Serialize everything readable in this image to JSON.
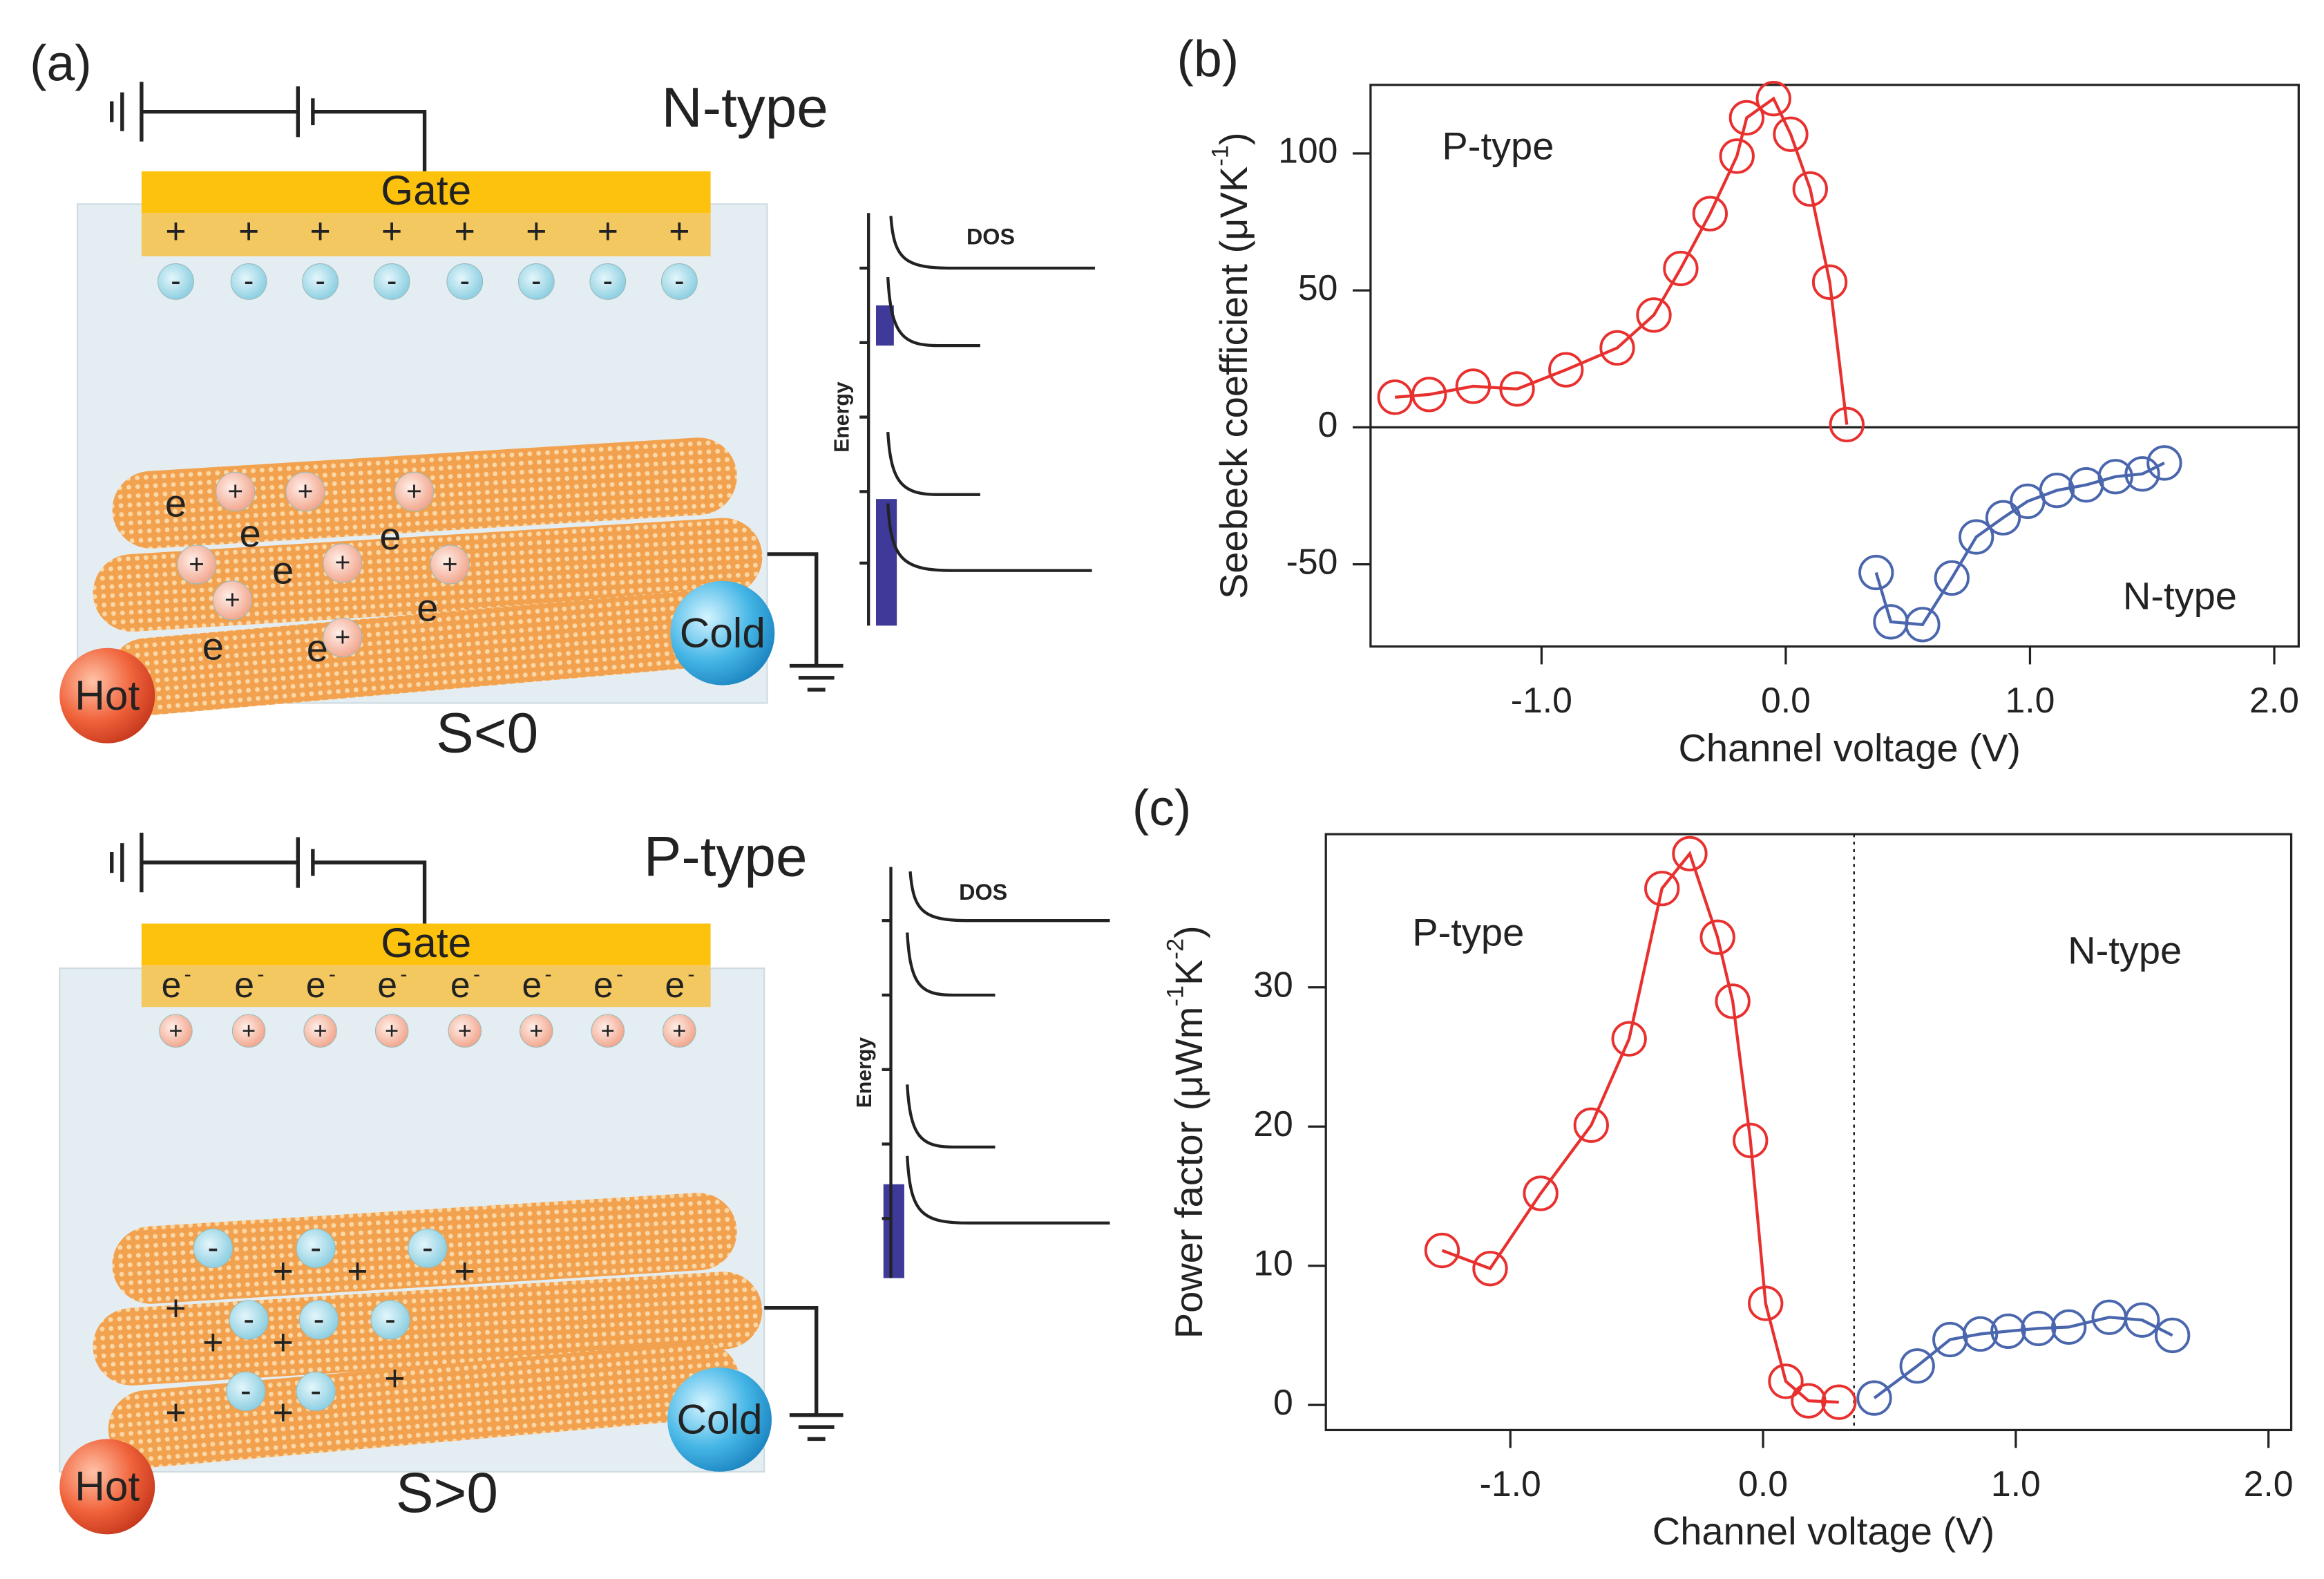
{
  "panel_a": {
    "label": "(a)",
    "top_type": "N-type",
    "bottom_type": "P-type",
    "gate": "Gate",
    "dos": "DOS",
    "energy": "Energy",
    "hot": "Hot",
    "cold": "Cold",
    "top_sign": "S<0",
    "bottom_sign": "S>0",
    "plus": "+",
    "minus": "-",
    "electron": "e"
  },
  "chart_data": [
    {
      "type": "line",
      "label": "(b)",
      "xlabel": "Channel voltage (V)",
      "ylabel": [
        "Seebeck coefficient (μVK",
        "-1",
        ")"
      ],
      "xlim": [
        -1.7,
        2.1
      ],
      "ylim": [
        -80,
        125
      ],
      "xticks": [
        {
          "value": -1,
          "label": "-1.0"
        },
        {
          "value": 0,
          "label": "0.0"
        },
        {
          "value": 1,
          "label": "1.0"
        },
        {
          "value": 2,
          "label": "2.0"
        }
      ],
      "yticks": [
        -50,
        0,
        50,
        100
      ],
      "hline": 0,
      "annotations": [
        "P-type",
        "N-type"
      ],
      "series": [
        {
          "color": "#e8312f",
          "x": [
            -1.6,
            -1.46,
            -1.28,
            -1.1,
            -0.9,
            -0.69,
            -0.54,
            -0.43,
            -0.31,
            -0.2,
            -0.16,
            -0.05,
            0.02,
            0.1,
            0.18,
            0.25
          ],
          "values": [
            11,
            12,
            15,
            14,
            21,
            29,
            41,
            58,
            78,
            99,
            113,
            120,
            107,
            87,
            53,
            1
          ]
        },
        {
          "color": "#4a66ad",
          "x": [
            0.37,
            0.43,
            0.56,
            0.68,
            0.78,
            0.89,
            0.99,
            1.11,
            1.23,
            1.35,
            1.46,
            1.55
          ],
          "values": [
            -53,
            -71,
            -72,
            -55,
            -40,
            -33,
            -27,
            -23,
            -21,
            -18,
            -17,
            -13
          ]
        }
      ]
    },
    {
      "type": "line",
      "label": "(c)",
      "xlabel": "Channel voltage (V)",
      "ylabel": [
        "Power factor (μWm",
        "-1",
        "K",
        "-2",
        ")"
      ],
      "xlim": [
        -1.73,
        2.09
      ],
      "ylim": [
        -1.8,
        41
      ],
      "xticks": [
        {
          "value": -1,
          "label": "-1.0"
        },
        {
          "value": 0,
          "label": "0.0"
        },
        {
          "value": 1,
          "label": "1.0"
        },
        {
          "value": 2,
          "label": "2.0"
        }
      ],
      "yticks": [
        0,
        10,
        20,
        30
      ],
      "vline": 0.36,
      "annotations": [
        "P-type",
        "N-type"
      ],
      "series": [
        {
          "color": "#e8312f",
          "x": [
            -1.27,
            -1.08,
            -0.88,
            -0.68,
            -0.53,
            -0.4,
            -0.29,
            -0.18,
            -0.12,
            -0.05,
            0.01,
            0.09,
            0.18,
            0.3
          ],
          "values": [
            11.1,
            9.8,
            15.2,
            20.1,
            26.3,
            37.1,
            39.6,
            33.6,
            29,
            19,
            7.3,
            1.7,
            0.3,
            0.2
          ]
        },
        {
          "color": "#4a66ad",
          "x": [
            0.44,
            0.61,
            0.74,
            0.86,
            0.97,
            1.09,
            1.21,
            1.37,
            1.5,
            1.62
          ],
          "values": [
            0.5,
            2.8,
            4.7,
            5.1,
            5.3,
            5.5,
            5.6,
            6.3,
            6.1,
            5.0
          ]
        }
      ]
    }
  ]
}
